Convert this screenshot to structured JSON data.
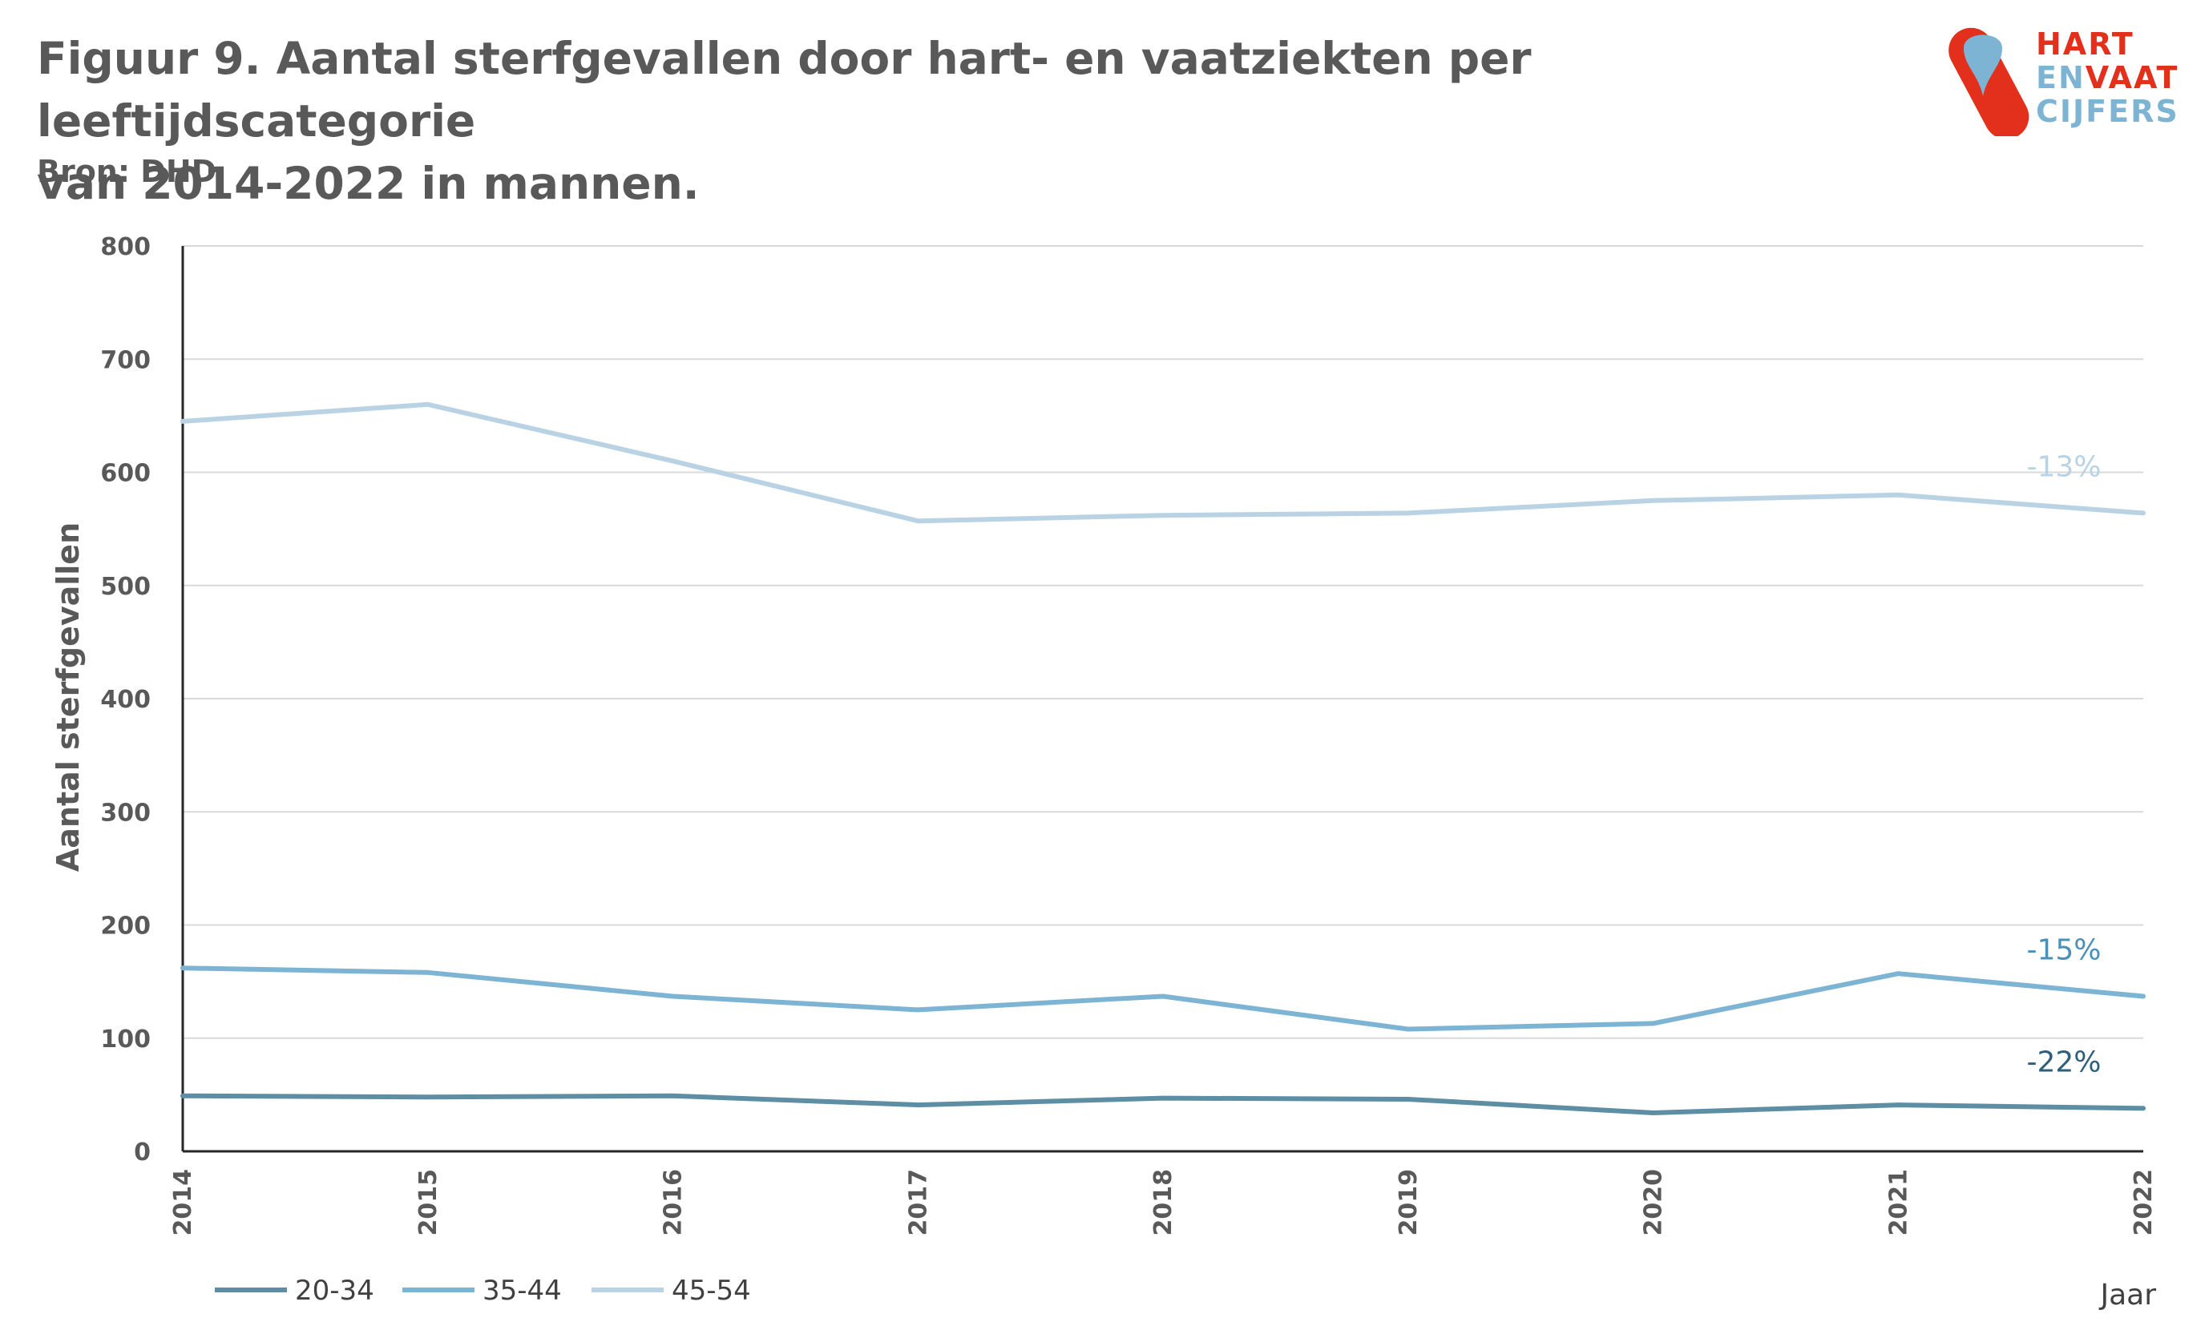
{
  "header": {
    "title_line1": "Figuur 9. Aantal sterfgevallen door hart- en vaatziekten per leeftijdscategorie",
    "title_line2": "van 2014-2022 in mannen.",
    "source": "Bron: DHD"
  },
  "logo": {
    "line1": "HART",
    "line2a": "EN",
    "line2b": "VAAT",
    "line3": "CIJFERS",
    "colors": {
      "red": "#e3301c",
      "blue": "#7db3d3"
    }
  },
  "chart_data": {
    "type": "line",
    "x": [
      2014,
      2015,
      2016,
      2017,
      2018,
      2019,
      2020,
      2021,
      2022
    ],
    "x_tick_labels": [
      "2014",
      "2015",
      "2016",
      "2017",
      "2018",
      "2019",
      "2020",
      "2021",
      "2022"
    ],
    "ylabel": "Aantal sterfgevallen",
    "xlabel": "Jaar",
    "ylim": [
      0,
      800
    ],
    "yticks": [
      0,
      100,
      200,
      300,
      400,
      500,
      600,
      700,
      800
    ],
    "grid": true,
    "legend_position": "bottom-left",
    "series": [
      {
        "name": "20-34",
        "color": "#5e8ea3",
        "values": [
          49,
          48,
          49,
          41,
          47,
          46,
          34,
          41,
          38
        ],
        "annotation": "-22%",
        "annotation_color": "#2f5f7a"
      },
      {
        "name": "35-44",
        "color": "#7db3d3",
        "values": [
          162,
          158,
          137,
          125,
          137,
          108,
          113,
          157,
          137
        ],
        "annotation": "-15%",
        "annotation_color": "#4a90b8"
      },
      {
        "name": "45-54",
        "color": "#b9d3e4",
        "values": [
          645,
          660,
          610,
          557,
          562,
          564,
          575,
          580,
          564
        ],
        "annotation": "-13%",
        "annotation_color": "#b9d3e4"
      }
    ]
  }
}
